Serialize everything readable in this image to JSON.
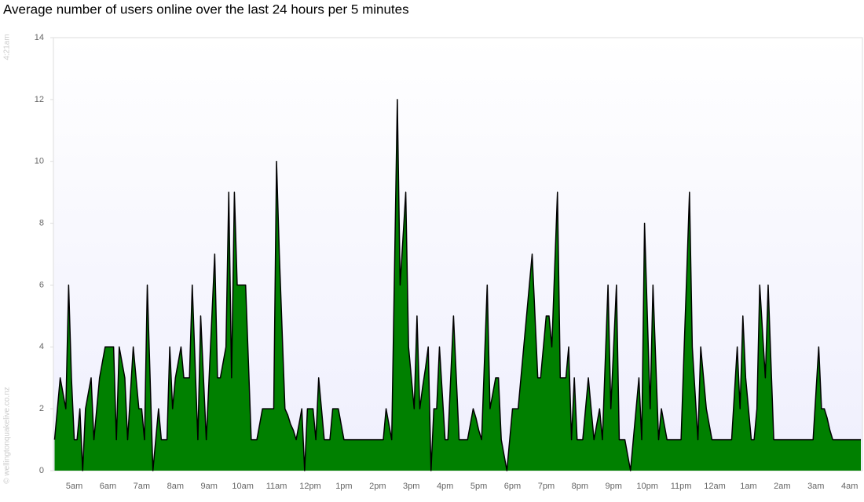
{
  "chart_data": {
    "type": "area",
    "title": "Average number of users online over the last 24 hours per 5 minutes",
    "timestamp": "4:21am",
    "credit": "© wellingtonquakelive.co.nz",
    "color": "#008000",
    "line_color": "#000000",
    "grid": false,
    "ylim": [
      0,
      14
    ],
    "yticks": [
      0,
      2,
      4,
      6,
      8,
      10,
      12,
      14
    ],
    "categories": [
      null,
      null,
      null,
      null,
      null,
      null,
      null,
      "5am",
      null,
      null,
      null,
      null,
      null,
      null,
      null,
      null,
      null,
      null,
      null,
      "6am",
      null,
      null,
      null,
      null,
      null,
      null,
      null,
      null,
      null,
      null,
      null,
      "7am",
      null,
      null,
      null,
      null,
      null,
      null,
      null,
      null,
      null,
      null,
      null,
      "8am",
      null,
      null,
      null,
      null,
      null,
      null,
      null,
      null,
      null,
      null,
      null,
      "9am",
      null,
      null,
      null,
      null,
      null,
      null,
      null,
      null,
      null,
      null,
      null,
      "10am",
      null,
      null,
      null,
      null,
      null,
      null,
      null,
      null,
      null,
      null,
      null,
      "11am",
      null,
      null,
      null,
      null,
      null,
      null,
      null,
      null,
      null,
      null,
      null,
      "12pm",
      null,
      null,
      null,
      null,
      null,
      null,
      null,
      null,
      null,
      null,
      null,
      "1pm",
      null,
      null,
      null,
      null,
      null,
      null,
      null,
      null,
      null,
      null,
      null,
      "2pm",
      null,
      null,
      null,
      null,
      null,
      null,
      null,
      null,
      null,
      null,
      null,
      "3pm",
      null,
      null,
      null,
      null,
      null,
      null,
      null,
      null,
      null,
      null,
      null,
      "4pm",
      null,
      null,
      null,
      null,
      null,
      null,
      null,
      null,
      null,
      null,
      null,
      "5pm",
      null,
      null,
      null,
      null,
      null,
      null,
      null,
      null,
      null,
      null,
      null,
      "6pm",
      null,
      null,
      null,
      null,
      null,
      null,
      null,
      null,
      null,
      null,
      null,
      "7pm",
      null,
      null,
      null,
      null,
      null,
      null,
      null,
      null,
      null,
      null,
      null,
      "8pm",
      null,
      null,
      null,
      null,
      null,
      null,
      null,
      null,
      null,
      null,
      null,
      "9pm",
      null,
      null,
      null,
      null,
      null,
      null,
      null,
      null,
      null,
      null,
      null,
      "10pm",
      null,
      null,
      null,
      null,
      null,
      null,
      null,
      null,
      null,
      null,
      null,
      "11pm",
      null,
      null,
      null,
      null,
      null,
      null,
      null,
      null,
      null,
      null,
      null,
      "12am",
      null,
      null,
      null,
      null,
      null,
      null,
      null,
      null,
      null,
      null,
      null,
      "1am",
      null,
      null,
      null,
      null,
      null,
      null,
      null,
      null,
      null,
      null,
      null,
      "2am",
      null,
      null,
      null,
      null,
      null,
      null,
      null,
      null,
      null,
      null,
      null,
      "3am",
      null,
      null,
      null,
      null,
      null,
      null,
      null,
      null,
      null,
      null,
      null,
      "4am",
      null,
      null,
      null,
      null
    ],
    "values": [
      1,
      2,
      3,
      2.5,
      2,
      6,
      3,
      1,
      1,
      2,
      0,
      2,
      2.5,
      3,
      1,
      2,
      3,
      3.5,
      4,
      4,
      4,
      4,
      1,
      4,
      3.5,
      3,
      1,
      2.5,
      4,
      3,
      2,
      2,
      1,
      6,
      3,
      0,
      1,
      2,
      1,
      1,
      1,
      4,
      2,
      3,
      3.5,
      4,
      3,
      3,
      3,
      6,
      3.5,
      1,
      5,
      3,
      1,
      3,
      5,
      7,
      3,
      3,
      3.5,
      4,
      9,
      3,
      9,
      6,
      6,
      6,
      6,
      3.5,
      1,
      1,
      1,
      1.5,
      2,
      2,
      2,
      2,
      2,
      10,
      7,
      4.5,
      2,
      1.8,
      1.5,
      1.3,
      1,
      1.5,
      2,
      0,
      2,
      2,
      2,
      1,
      3,
      2,
      1,
      1,
      1,
      2,
      2,
      2,
      1.5,
      1,
      1,
      1,
      1,
      1,
      1,
      1,
      1,
      1,
      1,
      1,
      1,
      1,
      1,
      1,
      2,
      1.5,
      1,
      6.5,
      12,
      6,
      7.5,
      9,
      4,
      3,
      2,
      5,
      2,
      2.7,
      3.3,
      4,
      0,
      2,
      2,
      4,
      2.5,
      1,
      1,
      3,
      5,
      3,
      1,
      1,
      1,
      1,
      1.5,
      2,
      1.7,
      1.3,
      1,
      3.5,
      6,
      2,
      2.5,
      3,
      3,
      1,
      0.5,
      0,
      1,
      2,
      2,
      2,
      3,
      4,
      5,
      6,
      7,
      5,
      3,
      3,
      4,
      5,
      5,
      4,
      6.5,
      9,
      3,
      3,
      3,
      4,
      1,
      3,
      1,
      1,
      1,
      2,
      3,
      2,
      1,
      1.5,
      2,
      1,
      3.5,
      6,
      2,
      4,
      6,
      1,
      1,
      1,
      0.5,
      0,
      1,
      2,
      3,
      1,
      8,
      5,
      2,
      6,
      3.5,
      1,
      2,
      1.5,
      1,
      1,
      1,
      1,
      1,
      1,
      3.7,
      6.3,
      9,
      4,
      2.5,
      1,
      4,
      3,
      2,
      1.5,
      1,
      1,
      1,
      1,
      1,
      1,
      1,
      1,
      2.5,
      4,
      2,
      5,
      3,
      2,
      1,
      1,
      2,
      6,
      4.5,
      3,
      6,
      3.5,
      1,
      1,
      1,
      1,
      1,
      1,
      1,
      1,
      1,
      1,
      1,
      1,
      1,
      1,
      1,
      2.5,
      4,
      2,
      2,
      1.7,
      1.3,
      1,
      1,
      1,
      1,
      1,
      1,
      1,
      1,
      1,
      1,
      1
    ]
  }
}
